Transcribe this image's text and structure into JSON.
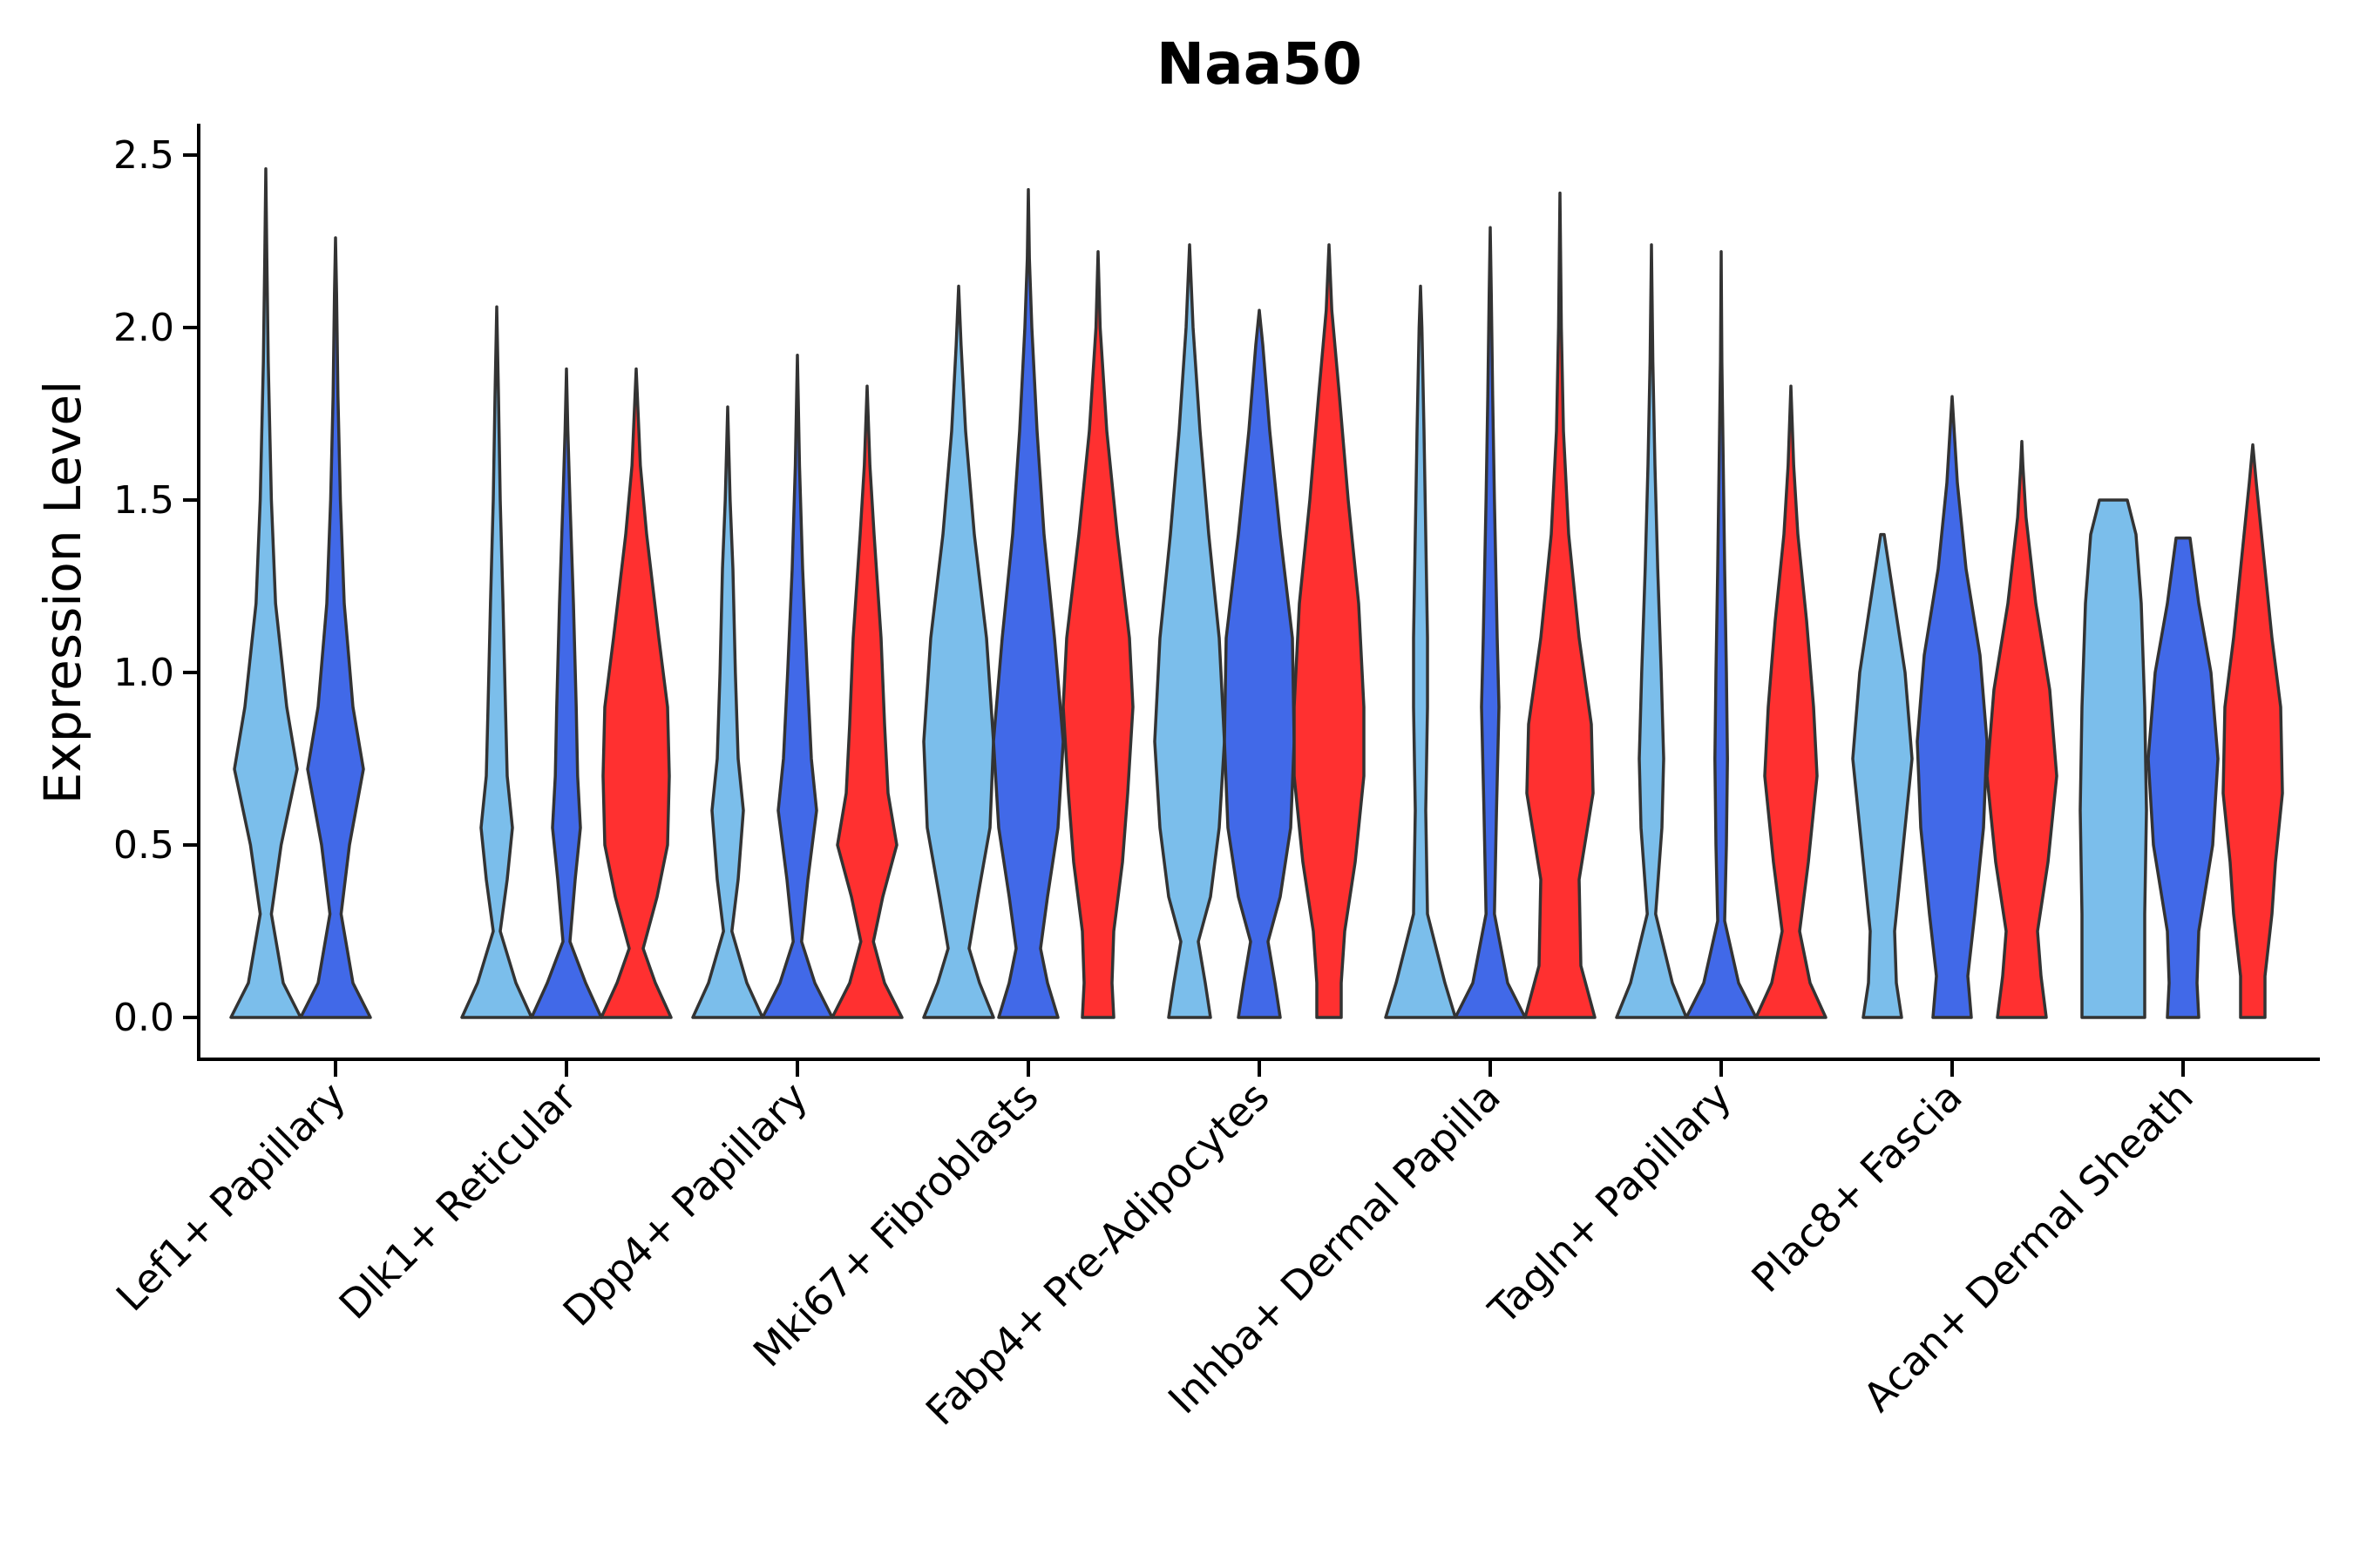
{
  "chart_data": {
    "type": "violin",
    "title": "Naa50",
    "ylabel": "Expression Level",
    "xlabel": "",
    "ylim": [
      -0.12,
      2.6
    ],
    "yticks": [
      0.0,
      0.5,
      1.0,
      1.5,
      2.0,
      2.5
    ],
    "ytick_labels": [
      "0.0",
      "0.5",
      "1.0",
      "1.5",
      "2.0",
      "2.5"
    ],
    "categories": [
      "Lef1+ Papillary",
      "Dlk1+ Reticular",
      "Dpp4+ Papillary",
      "Mki67+ Fibroblasts",
      "Fabp4+ Pre-Adipocytes",
      "Inhba+ Dermal Papilla",
      "Tagln+ Papillary",
      "Plac8+ Fascia",
      "Acan+ Dermal Sheath"
    ],
    "series": [
      {
        "name": "group1",
        "color": "#7BBEEB"
      },
      {
        "name": "group2",
        "color": "#4169E8"
      },
      {
        "name": "group3",
        "color": "#FF3030"
      }
    ],
    "violins": [
      {
        "category": 0,
        "series": 0,
        "max": 2.46,
        "profile": [
          [
            0,
            1.0
          ],
          [
            0.1,
            0.5
          ],
          [
            0.3,
            0.16
          ],
          [
            0.5,
            0.44
          ],
          [
            0.72,
            0.9
          ],
          [
            0.9,
            0.6
          ],
          [
            1.2,
            0.28
          ],
          [
            1.5,
            0.16
          ],
          [
            1.9,
            0.07
          ],
          [
            2.2,
            0.03
          ]
        ]
      },
      {
        "category": 0,
        "series": 1,
        "max": 2.26,
        "profile": [
          [
            0,
            1.0
          ],
          [
            0.1,
            0.5
          ],
          [
            0.3,
            0.16
          ],
          [
            0.5,
            0.4
          ],
          [
            0.72,
            0.8
          ],
          [
            0.9,
            0.5
          ],
          [
            1.2,
            0.25
          ],
          [
            1.5,
            0.14
          ],
          [
            1.8,
            0.07
          ],
          [
            2.1,
            0.03
          ]
        ]
      },
      {
        "category": 1,
        "series": 0,
        "max": 2.06,
        "profile": [
          [
            0,
            1.0
          ],
          [
            0.1,
            0.55
          ],
          [
            0.25,
            0.1
          ],
          [
            0.4,
            0.3
          ],
          [
            0.55,
            0.45
          ],
          [
            0.7,
            0.3
          ],
          [
            0.9,
            0.25
          ],
          [
            1.2,
            0.18
          ],
          [
            1.5,
            0.1
          ],
          [
            1.8,
            0.05
          ]
        ]
      },
      {
        "category": 1,
        "series": 1,
        "max": 1.88,
        "profile": [
          [
            0,
            1.0
          ],
          [
            0.1,
            0.55
          ],
          [
            0.22,
            0.1
          ],
          [
            0.4,
            0.25
          ],
          [
            0.55,
            0.4
          ],
          [
            0.7,
            0.32
          ],
          [
            0.9,
            0.28
          ],
          [
            1.2,
            0.2
          ],
          [
            1.5,
            0.1
          ],
          [
            1.7,
            0.04
          ]
        ]
      },
      {
        "category": 1,
        "series": 2,
        "max": 1.88,
        "profile": [
          [
            0,
            1.0
          ],
          [
            0.1,
            0.55
          ],
          [
            0.2,
            0.2
          ],
          [
            0.35,
            0.6
          ],
          [
            0.5,
            0.9
          ],
          [
            0.7,
            0.95
          ],
          [
            0.9,
            0.9
          ],
          [
            1.1,
            0.65
          ],
          [
            1.4,
            0.3
          ],
          [
            1.6,
            0.12
          ]
        ]
      },
      {
        "category": 2,
        "series": 0,
        "max": 1.77,
        "profile": [
          [
            0,
            1.0
          ],
          [
            0.1,
            0.55
          ],
          [
            0.25,
            0.12
          ],
          [
            0.4,
            0.3
          ],
          [
            0.6,
            0.45
          ],
          [
            0.75,
            0.3
          ],
          [
            1.0,
            0.22
          ],
          [
            1.3,
            0.15
          ],
          [
            1.5,
            0.07
          ]
        ]
      },
      {
        "category": 2,
        "series": 1,
        "max": 1.92,
        "profile": [
          [
            0,
            1.0
          ],
          [
            0.1,
            0.5
          ],
          [
            0.22,
            0.12
          ],
          [
            0.4,
            0.3
          ],
          [
            0.6,
            0.55
          ],
          [
            0.75,
            0.4
          ],
          [
            1.0,
            0.28
          ],
          [
            1.3,
            0.15
          ],
          [
            1.6,
            0.06
          ]
        ]
      },
      {
        "category": 2,
        "series": 2,
        "max": 1.83,
        "profile": [
          [
            0,
            1.0
          ],
          [
            0.1,
            0.5
          ],
          [
            0.22,
            0.18
          ],
          [
            0.35,
            0.45
          ],
          [
            0.5,
            0.85
          ],
          [
            0.65,
            0.6
          ],
          [
            0.85,
            0.5
          ],
          [
            1.1,
            0.4
          ],
          [
            1.4,
            0.2
          ],
          [
            1.6,
            0.08
          ]
        ]
      },
      {
        "category": 3,
        "series": 0,
        "max": 2.12,
        "profile": [
          [
            0,
            1.0
          ],
          [
            0.1,
            0.6
          ],
          [
            0.2,
            0.3
          ],
          [
            0.35,
            0.55
          ],
          [
            0.55,
            0.9
          ],
          [
            0.8,
            1.0
          ],
          [
            1.1,
            0.8
          ],
          [
            1.4,
            0.45
          ],
          [
            1.7,
            0.2
          ],
          [
            1.95,
            0.07
          ]
        ]
      },
      {
        "category": 3,
        "series": 1,
        "max": 2.4,
        "profile": [
          [
            0,
            0.85
          ],
          [
            0.1,
            0.55
          ],
          [
            0.2,
            0.35
          ],
          [
            0.35,
            0.55
          ],
          [
            0.55,
            0.85
          ],
          [
            0.8,
            1.0
          ],
          [
            1.1,
            0.75
          ],
          [
            1.4,
            0.45
          ],
          [
            1.7,
            0.25
          ],
          [
            2.0,
            0.1
          ],
          [
            2.2,
            0.03
          ]
        ]
      },
      {
        "category": 3,
        "series": 2,
        "max": 2.22,
        "profile": [
          [
            0,
            0.45
          ],
          [
            0.1,
            0.4
          ],
          [
            0.25,
            0.45
          ],
          [
            0.45,
            0.7
          ],
          [
            0.65,
            0.85
          ],
          [
            0.9,
            1.0
          ],
          [
            1.1,
            0.9
          ],
          [
            1.4,
            0.55
          ],
          [
            1.7,
            0.25
          ],
          [
            2.0,
            0.06
          ]
        ]
      },
      {
        "category": 4,
        "series": 0,
        "max": 2.24,
        "profile": [
          [
            0,
            0.6
          ],
          [
            0.1,
            0.45
          ],
          [
            0.22,
            0.25
          ],
          [
            0.35,
            0.6
          ],
          [
            0.55,
            0.85
          ],
          [
            0.8,
            1.0
          ],
          [
            1.1,
            0.85
          ],
          [
            1.4,
            0.55
          ],
          [
            1.7,
            0.3
          ],
          [
            2.0,
            0.1
          ]
        ]
      },
      {
        "category": 4,
        "series": 1,
        "max": 2.05,
        "profile": [
          [
            0,
            0.6
          ],
          [
            0.1,
            0.45
          ],
          [
            0.22,
            0.25
          ],
          [
            0.35,
            0.6
          ],
          [
            0.55,
            0.9
          ],
          [
            0.8,
            1.0
          ],
          [
            1.1,
            0.95
          ],
          [
            1.4,
            0.6
          ],
          [
            1.7,
            0.3
          ],
          [
            1.95,
            0.1
          ]
        ]
      },
      {
        "category": 4,
        "series": 2,
        "max": 2.24,
        "profile": [
          [
            0,
            0.35
          ],
          [
            0.1,
            0.35
          ],
          [
            0.25,
            0.45
          ],
          [
            0.45,
            0.75
          ],
          [
            0.7,
            1.0
          ],
          [
            0.9,
            1.0
          ],
          [
            1.2,
            0.85
          ],
          [
            1.5,
            0.55
          ],
          [
            1.8,
            0.3
          ],
          [
            2.05,
            0.08
          ]
        ]
      },
      {
        "category": 5,
        "series": 0,
        "max": 2.12,
        "profile": [
          [
            0,
            1.0
          ],
          [
            0.1,
            0.7
          ],
          [
            0.3,
            0.2
          ],
          [
            0.6,
            0.15
          ],
          [
            0.9,
            0.2
          ],
          [
            1.1,
            0.2
          ],
          [
            1.4,
            0.15
          ],
          [
            1.7,
            0.1
          ],
          [
            2.0,
            0.04
          ]
        ]
      },
      {
        "category": 5,
        "series": 1,
        "max": 2.29,
        "profile": [
          [
            0,
            1.0
          ],
          [
            0.1,
            0.5
          ],
          [
            0.3,
            0.12
          ],
          [
            0.6,
            0.18
          ],
          [
            0.9,
            0.25
          ],
          [
            1.1,
            0.2
          ],
          [
            1.5,
            0.12
          ],
          [
            1.8,
            0.07
          ],
          [
            2.1,
            0.03
          ]
        ]
      },
      {
        "category": 5,
        "series": 2,
        "max": 2.39,
        "profile": [
          [
            0,
            1.0
          ],
          [
            0.15,
            0.6
          ],
          [
            0.4,
            0.55
          ],
          [
            0.65,
            0.95
          ],
          [
            0.85,
            0.9
          ],
          [
            1.1,
            0.55
          ],
          [
            1.4,
            0.25
          ],
          [
            1.7,
            0.1
          ],
          [
            2.0,
            0.04
          ]
        ]
      },
      {
        "category": 6,
        "series": 0,
        "max": 2.24,
        "profile": [
          [
            0,
            1.0
          ],
          [
            0.1,
            0.6
          ],
          [
            0.3,
            0.12
          ],
          [
            0.55,
            0.3
          ],
          [
            0.75,
            0.35
          ],
          [
            1.0,
            0.28
          ],
          [
            1.3,
            0.18
          ],
          [
            1.6,
            0.1
          ],
          [
            1.9,
            0.04
          ]
        ]
      },
      {
        "category": 6,
        "series": 1,
        "max": 2.22,
        "profile": [
          [
            0,
            1.0
          ],
          [
            0.1,
            0.5
          ],
          [
            0.28,
            0.1
          ],
          [
            0.5,
            0.15
          ],
          [
            0.75,
            0.18
          ],
          [
            1.0,
            0.15
          ],
          [
            1.3,
            0.1
          ],
          [
            1.6,
            0.06
          ],
          [
            1.9,
            0.02
          ]
        ]
      },
      {
        "category": 6,
        "series": 2,
        "max": 1.83,
        "profile": [
          [
            0,
            1.0
          ],
          [
            0.1,
            0.55
          ],
          [
            0.25,
            0.25
          ],
          [
            0.45,
            0.5
          ],
          [
            0.7,
            0.75
          ],
          [
            0.9,
            0.65
          ],
          [
            1.15,
            0.45
          ],
          [
            1.4,
            0.2
          ],
          [
            1.6,
            0.08
          ]
        ]
      },
      {
        "category": 7,
        "series": 0,
        "max": 1.4,
        "profile": [
          [
            0,
            0.55
          ],
          [
            0.1,
            0.4
          ],
          [
            0.25,
            0.35
          ],
          [
            0.5,
            0.6
          ],
          [
            0.75,
            0.85
          ],
          [
            1.0,
            0.65
          ],
          [
            1.2,
            0.35
          ],
          [
            1.4,
            0.05
          ]
        ]
      },
      {
        "category": 7,
        "series": 1,
        "max": 1.8,
        "profile": [
          [
            0,
            0.55
          ],
          [
            0.12,
            0.45
          ],
          [
            0.3,
            0.65
          ],
          [
            0.55,
            0.9
          ],
          [
            0.8,
            1.0
          ],
          [
            1.05,
            0.8
          ],
          [
            1.3,
            0.4
          ],
          [
            1.55,
            0.15
          ],
          [
            1.75,
            0.03
          ]
        ]
      },
      {
        "category": 7,
        "series": 2,
        "max": 1.67,
        "profile": [
          [
            0,
            0.7
          ],
          [
            0.12,
            0.55
          ],
          [
            0.25,
            0.45
          ],
          [
            0.45,
            0.75
          ],
          [
            0.7,
            1.0
          ],
          [
            0.95,
            0.8
          ],
          [
            1.2,
            0.4
          ],
          [
            1.45,
            0.12
          ],
          [
            1.6,
            0.03
          ]
        ]
      },
      {
        "category": 8,
        "series": 0,
        "max": 1.5,
        "profile": [
          [
            0,
            0.9
          ],
          [
            0.3,
            0.9
          ],
          [
            0.6,
            0.95
          ],
          [
            0.9,
            0.9
          ],
          [
            1.2,
            0.8
          ],
          [
            1.4,
            0.65
          ],
          [
            1.5,
            0.4
          ]
        ]
      },
      {
        "category": 8,
        "series": 1,
        "max": 1.39,
        "profile": [
          [
            0,
            0.45
          ],
          [
            0.1,
            0.4
          ],
          [
            0.25,
            0.45
          ],
          [
            0.5,
            0.85
          ],
          [
            0.75,
            1.0
          ],
          [
            1.0,
            0.8
          ],
          [
            1.2,
            0.45
          ],
          [
            1.39,
            0.2
          ]
        ]
      },
      {
        "category": 8,
        "series": 2,
        "max": 1.66,
        "profile": [
          [
            0,
            0.35
          ],
          [
            0.12,
            0.35
          ],
          [
            0.3,
            0.55
          ],
          [
            0.45,
            0.65
          ],
          [
            0.65,
            0.85
          ],
          [
            0.9,
            0.8
          ],
          [
            1.1,
            0.55
          ],
          [
            1.35,
            0.3
          ],
          [
            1.55,
            0.1
          ]
        ]
      }
    ]
  }
}
